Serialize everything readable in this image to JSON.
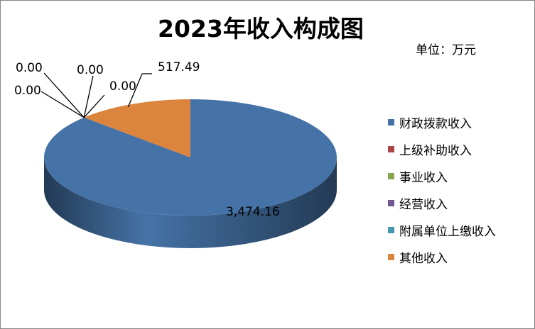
{
  "chart_data": {
    "type": "pie",
    "title": "2023年收入构成图",
    "unit_label": "单位：万元",
    "slices": [
      {
        "name": "财政拨款收入",
        "value": 3474.16,
        "label": "3,474.16",
        "color": "#4573A7"
      },
      {
        "name": "上级补助收入",
        "value": 0,
        "label": "0.00",
        "color": "#AA4643"
      },
      {
        "name": "事业收入",
        "value": 0,
        "label": "0.00",
        "color": "#89A54E"
      },
      {
        "name": "经营收入",
        "value": 0,
        "label": "0.00",
        "color": "#71588F"
      },
      {
        "name": "附属单位上缴收入",
        "value": 0,
        "label": "0.00",
        "color": "#4198AF"
      },
      {
        "name": "其他收入",
        "value": 517.49,
        "label": "517.49",
        "color": "#DB843D"
      }
    ],
    "legend_position": "right",
    "style": "3d-tilted"
  }
}
